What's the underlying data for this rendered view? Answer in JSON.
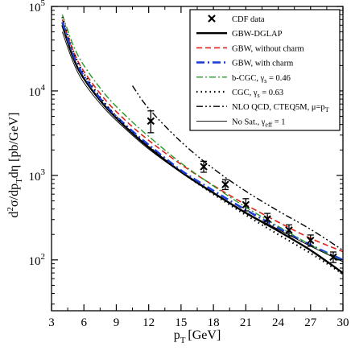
{
  "chart_data": {
    "type": "line",
    "title": "",
    "xlabel_main": "p",
    "xlabel_sub": "T",
    "xlabel_unit": "[GeV]",
    "ylabel_parts": [
      "d",
      "2",
      "σ/dp",
      "T",
      "dη [pb/GeV]"
    ],
    "xlim": [
      3,
      30
    ],
    "ylim": [
      25,
      100000
    ],
    "yscale": "log",
    "xticks": [
      3,
      6,
      9,
      12,
      15,
      18,
      21,
      24,
      27,
      30
    ],
    "yticks": [
      {
        "value": 100,
        "base": "10",
        "exp": "2"
      },
      {
        "value": 1000,
        "base": "10",
        "exp": "3"
      },
      {
        "value": 10000,
        "base": "10",
        "exp": "4"
      },
      {
        "value": 100000,
        "base": "10",
        "exp": "5"
      }
    ],
    "legend_position": "top-right",
    "data_points": {
      "name": "CDF data",
      "color": "#000000",
      "points": [
        {
          "x": 12.2,
          "y": 4400,
          "err_lo": 1200,
          "err_hi": 1400
        },
        {
          "x": 17.1,
          "y": 1270,
          "err_lo": 180,
          "err_hi": 200
        },
        {
          "x": 19.1,
          "y": 780,
          "err_lo": 100,
          "err_hi": 110
        },
        {
          "x": 21.0,
          "y": 450,
          "err_lo": 70,
          "err_hi": 80
        },
        {
          "x": 23.0,
          "y": 305,
          "err_lo": 45,
          "err_hi": 50
        },
        {
          "x": 25.0,
          "y": 225,
          "err_lo": 33,
          "err_hi": 35
        },
        {
          "x": 27.0,
          "y": 170,
          "err_lo": 25,
          "err_hi": 27
        },
        {
          "x": 29.1,
          "y": 108,
          "err_lo": 15,
          "err_hi": 16
        }
      ]
    },
    "series": [
      {
        "name": "GBW-DGLAP",
        "color": "#000000",
        "style": "solid-thick",
        "x": [
          4,
          5,
          6,
          8,
          10,
          12,
          15,
          18,
          21,
          24,
          27,
          30
        ],
        "y": [
          60000,
          25000,
          14000,
          6500,
          3600,
          2150,
          1100,
          620,
          360,
          220,
          130,
          70
        ]
      },
      {
        "name": "GBW, without charm",
        "color": "#e0201b",
        "style": "dashed",
        "x": [
          4,
          5,
          6,
          8,
          10,
          12,
          15,
          18,
          21,
          24,
          27,
          30
        ],
        "y": [
          70000,
          30000,
          17000,
          7800,
          4300,
          2600,
          1350,
          760,
          450,
          280,
          180,
          125
        ]
      },
      {
        "name": "GBW, with charm",
        "color": "#1f3fd6",
        "style": "dashdot-thick",
        "x": [
          4,
          5,
          6,
          8,
          10,
          12,
          15,
          18,
          21,
          24,
          27,
          30
        ],
        "y": [
          65000,
          27000,
          15000,
          6800,
          3800,
          2300,
          1150,
          660,
          390,
          240,
          150,
          100
        ]
      },
      {
        "name": "b-CGC, γ_s = 0.46",
        "color": "#2a9a2a",
        "style": "dashdot",
        "x": [
          4,
          5,
          6,
          8,
          10,
          12,
          15,
          18,
          21,
          24,
          27,
          30
        ],
        "y": [
          80000,
          35000,
          20000,
          9000,
          4900,
          2900,
          1400,
          750,
          420,
          250,
          150,
          95
        ]
      },
      {
        "name": "CGC, γ_s = 0.63",
        "color": "#000000",
        "style": "dotted",
        "x": [
          4,
          5,
          6,
          8,
          10,
          12,
          15,
          18,
          21,
          24,
          27,
          30
        ],
        "y": [
          75000,
          30000,
          16000,
          7000,
          3700,
          2200,
          1100,
          600,
          340,
          200,
          120,
          68
        ]
      },
      {
        "name": "NLO QCD, CTEQ5M, μ=p_T",
        "color": "#000000",
        "style": "dashdotdot",
        "x": [
          10.5,
          12,
          15,
          18,
          21,
          24,
          27,
          30
        ],
        "y": [
          11500,
          6200,
          2500,
          1200,
          650,
          380,
          230,
          130
        ]
      },
      {
        "name": "No Sat., γ_eff = 1",
        "color": "#000000",
        "style": "thin",
        "x": [
          4,
          5,
          6,
          8,
          10,
          12,
          15,
          18,
          21,
          24,
          27,
          30
        ],
        "y": [
          50000,
          22000,
          12500,
          6000,
          3400,
          2050,
          1080,
          610,
          360,
          230,
          145,
          95
        ]
      }
    ],
    "legend": [
      {
        "kind": "marker",
        "text": "CDF data"
      },
      {
        "kind": "line",
        "series": 0,
        "text": "GBW-DGLAP"
      },
      {
        "kind": "line",
        "series": 1,
        "text": "GBW, without charm"
      },
      {
        "kind": "line",
        "series": 2,
        "text": "GBW, with charm"
      },
      {
        "kind": "line",
        "series": 3,
        "text": "b-CGC, γ",
        "sub": "s",
        "tail": " = 0.46"
      },
      {
        "kind": "line",
        "series": 4,
        "text": "CGC, γ",
        "sub": "s",
        "tail": " = 0.63"
      },
      {
        "kind": "line",
        "series": 5,
        "text": "NLO QCD, CTEQ5M, μ=p",
        "sub": "T",
        "tail": ""
      },
      {
        "kind": "line",
        "series": 6,
        "text": "No Sat., γ",
        "sub": "eff",
        "tail": " = 1"
      }
    ]
  }
}
